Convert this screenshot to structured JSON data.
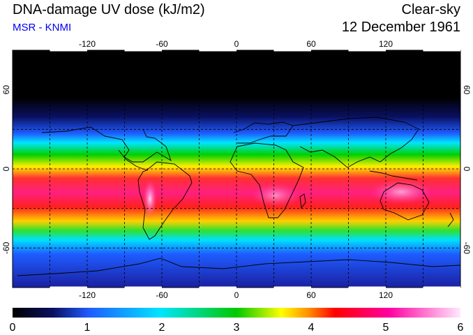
{
  "header": {
    "title": "DNA-damage UV dose (kJ/m2)",
    "subtitle": "MSR - KNMI",
    "condition": "Clear-sky",
    "date": "12 December 1961"
  },
  "colors": {
    "subtitle": "#0000ee"
  },
  "axes": {
    "lon_ticks": [
      -120,
      -60,
      0,
      60,
      120
    ],
    "lat_ticks": [
      60,
      0,
      -60
    ],
    "lon_range": [
      -180,
      180
    ],
    "lat_range": [
      -90,
      90
    ],
    "grid": "dashed"
  },
  "colorbar": {
    "ticks": [
      0,
      1,
      2,
      3,
      4,
      5,
      6
    ],
    "stops": [
      "#000000",
      "#0a1a9a",
      "#1f5cff",
      "#00e5ff",
      "#00c800",
      "#ffff00",
      "#ff9000",
      "#ff0000",
      "#ff00a0",
      "#ffd8ff"
    ]
  }
}
